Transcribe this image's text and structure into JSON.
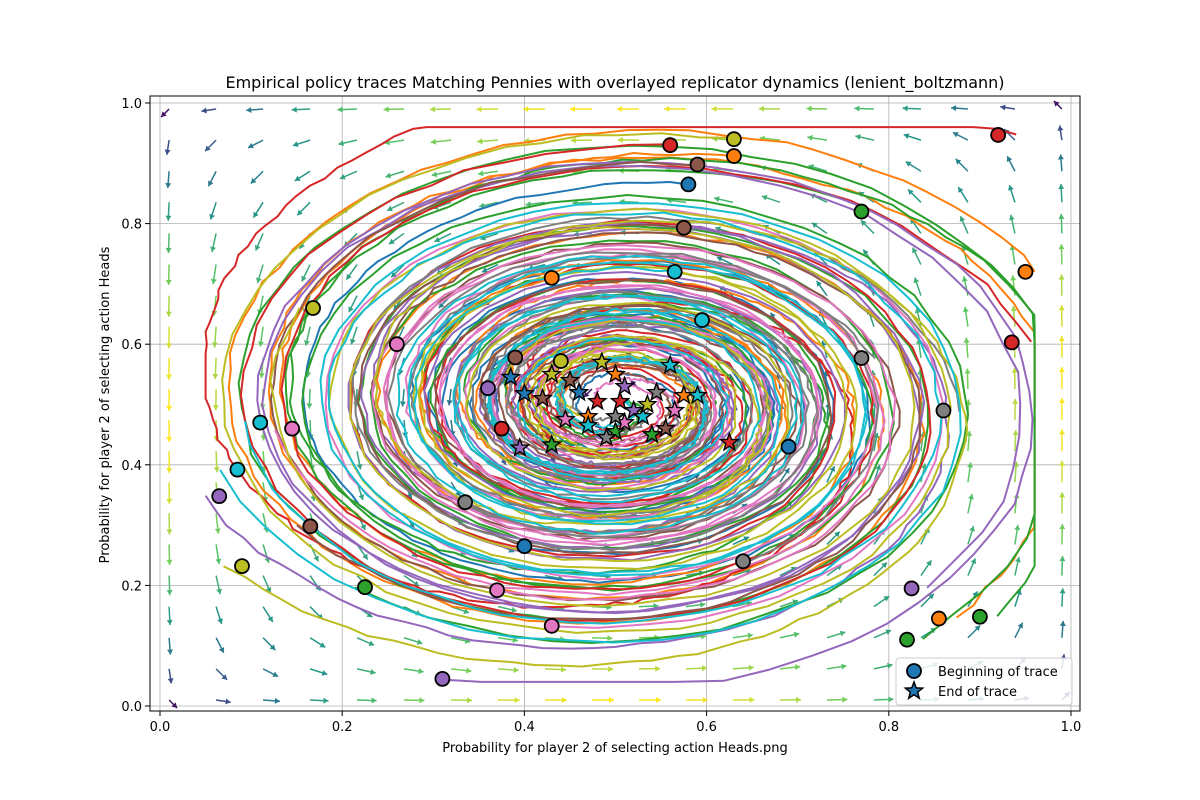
{
  "chart_data": {
    "type": "scatter",
    "title": "Empirical policy traces Matching Pennies with overlayed replicator dynamics (lenient_boltzmann)",
    "xlabel": "Probability for player 2 of selecting action Heads.png",
    "ylabel": "Probability for player 2 of selecting action Heads",
    "xlim": [
      0.0,
      1.0
    ],
    "ylim": [
      0.0,
      1.0
    ],
    "xticks": [
      "0.0",
      "0.2",
      "0.4",
      "0.6",
      "0.8",
      "1.0"
    ],
    "yticks": [
      "0.0",
      "0.2",
      "0.4",
      "0.6",
      "0.8",
      "1.0"
    ],
    "grid": true,
    "legend_position": "lower-right",
    "legend": [
      {
        "label": "Beginning of trace",
        "marker": "circle"
      },
      {
        "label": "End of trace",
        "marker": "star"
      }
    ],
    "colors": [
      "#1f77b4",
      "#ff7f0e",
      "#2ca02c",
      "#d62728",
      "#9467bd",
      "#8c564b",
      "#e377c2",
      "#7f7f7f",
      "#bcbd22",
      "#17becf"
    ],
    "quiver_colormap": [
      "#440154",
      "#3b528b",
      "#21918c",
      "#5ec962",
      "#fde725"
    ],
    "trace_starts": [
      {
        "x": 0.58,
        "y": 0.865,
        "c": 0
      },
      {
        "x": 0.69,
        "y": 0.43,
        "c": 0
      },
      {
        "x": 0.4,
        "y": 0.265,
        "c": 0
      },
      {
        "x": 0.63,
        "y": 0.912,
        "c": 1
      },
      {
        "x": 0.95,
        "y": 0.72,
        "c": 1
      },
      {
        "x": 0.43,
        "y": 0.71,
        "c": 1
      },
      {
        "x": 0.855,
        "y": 0.145,
        "c": 1
      },
      {
        "x": 0.77,
        "y": 0.82,
        "c": 2
      },
      {
        "x": 0.225,
        "y": 0.197,
        "c": 2
      },
      {
        "x": 0.9,
        "y": 0.148,
        "c": 2
      },
      {
        "x": 0.82,
        "y": 0.11,
        "c": 2
      },
      {
        "x": 0.56,
        "y": 0.93,
        "c": 3
      },
      {
        "x": 0.92,
        "y": 0.947,
        "c": 3
      },
      {
        "x": 0.935,
        "y": 0.603,
        "c": 3
      },
      {
        "x": 0.375,
        "y": 0.46,
        "c": 3
      },
      {
        "x": 0.065,
        "y": 0.348,
        "c": 4
      },
      {
        "x": 0.31,
        "y": 0.045,
        "c": 4
      },
      {
        "x": 0.825,
        "y": 0.195,
        "c": 4
      },
      {
        "x": 0.36,
        "y": 0.527,
        "c": 4
      },
      {
        "x": 0.59,
        "y": 0.898,
        "c": 5
      },
      {
        "x": 0.575,
        "y": 0.793,
        "c": 5
      },
      {
        "x": 0.165,
        "y": 0.298,
        "c": 5
      },
      {
        "x": 0.39,
        "y": 0.578,
        "c": 5
      },
      {
        "x": 0.26,
        "y": 0.6,
        "c": 6
      },
      {
        "x": 0.145,
        "y": 0.46,
        "c": 6
      },
      {
        "x": 0.37,
        "y": 0.192,
        "c": 6
      },
      {
        "x": 0.43,
        "y": 0.133,
        "c": 6
      },
      {
        "x": 0.77,
        "y": 0.577,
        "c": 7
      },
      {
        "x": 0.86,
        "y": 0.49,
        "c": 7
      },
      {
        "x": 0.64,
        "y": 0.24,
        "c": 7
      },
      {
        "x": 0.335,
        "y": 0.338,
        "c": 7
      },
      {
        "x": 0.63,
        "y": 0.94,
        "c": 8
      },
      {
        "x": 0.168,
        "y": 0.66,
        "c": 8
      },
      {
        "x": 0.09,
        "y": 0.232,
        "c": 8
      },
      {
        "x": 0.44,
        "y": 0.572,
        "c": 8
      },
      {
        "x": 0.565,
        "y": 0.72,
        "c": 9
      },
      {
        "x": 0.595,
        "y": 0.64,
        "c": 9
      },
      {
        "x": 0.11,
        "y": 0.47,
        "c": 9
      },
      {
        "x": 0.085,
        "y": 0.392,
        "c": 9
      }
    ],
    "trace_ends": [
      {
        "x": 0.385,
        "y": 0.545,
        "c": 0
      },
      {
        "x": 0.4,
        "y": 0.518,
        "c": 0
      },
      {
        "x": 0.47,
        "y": 0.48,
        "c": 1
      },
      {
        "x": 0.575,
        "y": 0.515,
        "c": 1
      },
      {
        "x": 0.43,
        "y": 0.433,
        "c": 2
      },
      {
        "x": 0.5,
        "y": 0.455,
        "c": 2
      },
      {
        "x": 0.625,
        "y": 0.437,
        "c": 3
      },
      {
        "x": 0.505,
        "y": 0.505,
        "c": 3
      },
      {
        "x": 0.395,
        "y": 0.428,
        "c": 4
      },
      {
        "x": 0.52,
        "y": 0.49,
        "c": 4
      },
      {
        "x": 0.45,
        "y": 0.54,
        "c": 5
      },
      {
        "x": 0.555,
        "y": 0.46,
        "c": 5
      },
      {
        "x": 0.445,
        "y": 0.475,
        "c": 6
      },
      {
        "x": 0.51,
        "y": 0.47,
        "c": 6
      },
      {
        "x": 0.545,
        "y": 0.52,
        "c": 7
      },
      {
        "x": 0.49,
        "y": 0.445,
        "c": 7
      },
      {
        "x": 0.43,
        "y": 0.55,
        "c": 8
      },
      {
        "x": 0.485,
        "y": 0.57,
        "c": 8
      },
      {
        "x": 0.56,
        "y": 0.565,
        "c": 9
      },
      {
        "x": 0.59,
        "y": 0.515,
        "c": 9
      },
      {
        "x": 0.53,
        "y": 0.48,
        "c": 9
      },
      {
        "x": 0.46,
        "y": 0.52,
        "c": 0
      },
      {
        "x": 0.5,
        "y": 0.55,
        "c": 1
      },
      {
        "x": 0.54,
        "y": 0.45,
        "c": 2
      },
      {
        "x": 0.48,
        "y": 0.505,
        "c": 3
      },
      {
        "x": 0.51,
        "y": 0.53,
        "c": 4
      },
      {
        "x": 0.42,
        "y": 0.51,
        "c": 5
      },
      {
        "x": 0.565,
        "y": 0.49,
        "c": 6
      },
      {
        "x": 0.5,
        "y": 0.48,
        "c": 7
      },
      {
        "x": 0.535,
        "y": 0.5,
        "c": 8
      },
      {
        "x": 0.47,
        "y": 0.465,
        "c": 9
      }
    ]
  }
}
